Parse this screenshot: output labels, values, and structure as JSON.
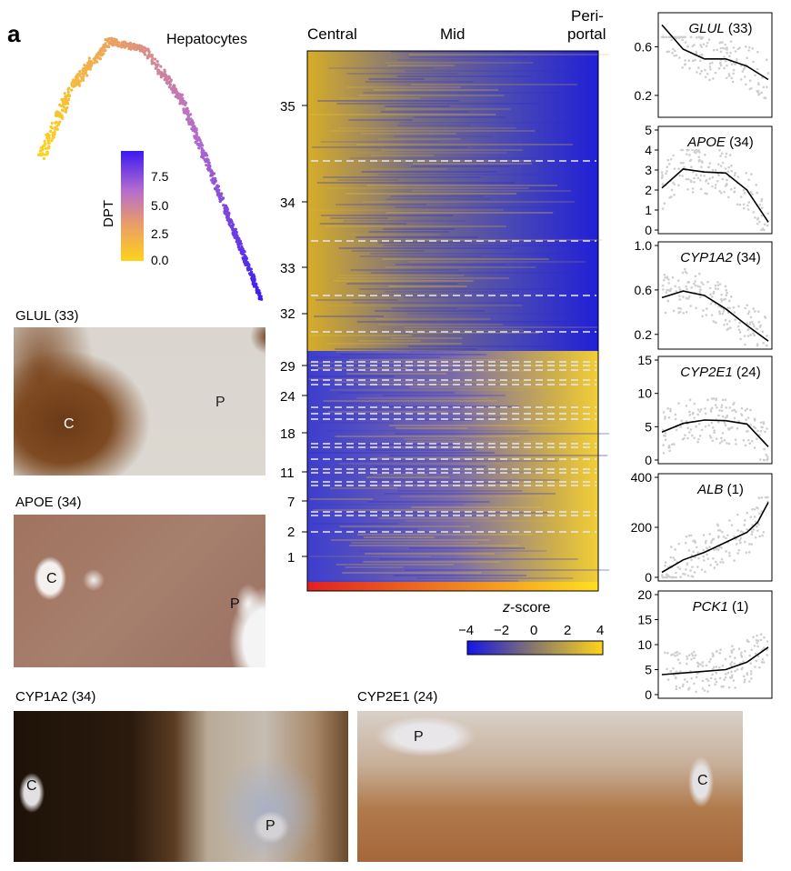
{
  "panel_label": "a",
  "trajectory": {
    "title": "Hepatocytes",
    "colorbar_label": "DPT",
    "colorbar_ticks": [
      "7.5",
      "5.0",
      "2.5",
      "0.0"
    ]
  },
  "heatmap": {
    "col_labels": {
      "central": "Central",
      "mid": "Mid",
      "peri1": "Peri-",
      "peri2": "portal"
    },
    "row_ticks": [
      "35",
      "34",
      "33",
      "32",
      "29",
      "24",
      "18",
      "11",
      "7",
      "2",
      "1"
    ],
    "zscore": {
      "label_italic": "z",
      "label_rest": "-score",
      "ticks": [
        "−4",
        "−2",
        "0",
        "2",
        "4"
      ]
    }
  },
  "stains": [
    {
      "title": "GLUL (33)",
      "markers": [
        "C",
        "P"
      ]
    },
    {
      "title": "APOE (34)",
      "markers": [
        "C",
        "P"
      ]
    },
    {
      "title": "CYP1A2 (34)",
      "markers": [
        "C",
        "P"
      ]
    },
    {
      "title": "CYP2E1 (24)",
      "markers": [
        "P",
        "C"
      ]
    }
  ],
  "chart_data": [
    {
      "type": "scatter",
      "gene": "GLUL",
      "cluster": "(33)",
      "yticks": [
        "0.6",
        "0.2"
      ],
      "ylim": [
        0.05,
        0.85
      ],
      "fit": [
        [
          0,
          0.78
        ],
        [
          0.2,
          0.58
        ],
        [
          0.4,
          0.5
        ],
        [
          0.6,
          0.5
        ],
        [
          0.8,
          0.44
        ],
        [
          1,
          0.33
        ]
      ]
    },
    {
      "type": "scatter",
      "gene": "APOE",
      "cluster": "(34)",
      "yticks": [
        "5",
        "4",
        "3",
        "2",
        "1",
        "0"
      ],
      "ylim": [
        0,
        5
      ],
      "fit": [
        [
          0,
          2.1
        ],
        [
          0.2,
          3.05
        ],
        [
          0.4,
          2.9
        ],
        [
          0.6,
          2.85
        ],
        [
          0.8,
          2.0
        ],
        [
          1,
          0.4
        ]
      ]
    },
    {
      "type": "scatter",
      "gene": "CYP1A2",
      "cluster": "(34)",
      "yticks": [
        "1.0",
        "0.6",
        "0.2"
      ],
      "ylim": [
        0.1,
        1.0
      ],
      "fit": [
        [
          0,
          0.53
        ],
        [
          0.2,
          0.59
        ],
        [
          0.4,
          0.55
        ],
        [
          0.6,
          0.43
        ],
        [
          0.8,
          0.28
        ],
        [
          1,
          0.14
        ]
      ]
    },
    {
      "type": "scatter",
      "gene": "CYP2E1",
      "cluster": "(24)",
      "yticks": [
        "15",
        "10",
        "5",
        "0"
      ],
      "ylim": [
        0,
        15
      ],
      "fit": [
        [
          0,
          4.2
        ],
        [
          0.2,
          5.5
        ],
        [
          0.4,
          6.0
        ],
        [
          0.6,
          5.9
        ],
        [
          0.8,
          5.4
        ],
        [
          1,
          2.0
        ]
      ]
    },
    {
      "type": "scatter",
      "gene": "ALB",
      "cluster": "(1)",
      "yticks": [
        "400",
        "200",
        "0"
      ],
      "ylim": [
        0,
        400
      ],
      "fit": [
        [
          0,
          20
        ],
        [
          0.2,
          70
        ],
        [
          0.4,
          100
        ],
        [
          0.6,
          140
        ],
        [
          0.8,
          180
        ],
        [
          0.9,
          220
        ],
        [
          1,
          300
        ]
      ]
    },
    {
      "type": "scatter",
      "gene": "PCK1",
      "cluster": "(1)",
      "yticks": [
        "20",
        "15",
        "10",
        "5",
        "0"
      ],
      "ylim": [
        0,
        20
      ],
      "fit": [
        [
          0,
          4.0
        ],
        [
          0.3,
          4.5
        ],
        [
          0.6,
          5.0
        ],
        [
          0.8,
          6.5
        ],
        [
          1,
          9.5
        ]
      ]
    }
  ]
}
